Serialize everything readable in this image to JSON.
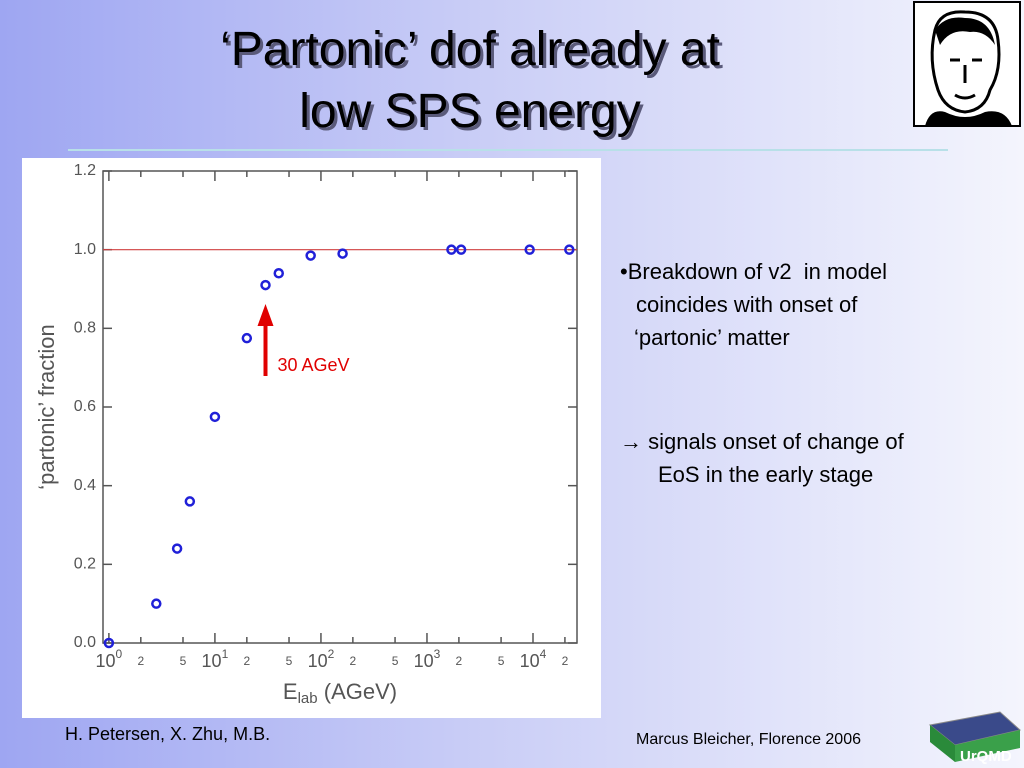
{
  "slide": {
    "title_lines": [
      "‘Partonic’ dof already at",
      "low SPS energy"
    ],
    "bullets": [
      "•Breakdown of v2  in model",
      "coincides with onset of",
      "‘partonic’ matter",
      "→ signals onset of change of",
      "EoS in the early stage"
    ],
    "footer_left": "H. Petersen, X. Zhu, M.B.",
    "footer_right": "Marcus Bleicher, Florence 2006",
    "logo_text": "UrQMD"
  },
  "chart_data": {
    "type": "scatter",
    "ylabel": "‘partonic’ fraction",
    "xlabel": {
      "main": "E",
      "sub": "lab",
      "rest": " (AGeV)"
    },
    "x": [
      1,
      2.8,
      4.4,
      5.8,
      10,
      20,
      30,
      40,
      80,
      160,
      1700,
      2100,
      9300,
      22000
    ],
    "series": [
      {
        "color": "#2020d8",
        "values": [
          0,
          0.1,
          0.24,
          0.36,
          0.575,
          0.775,
          0.91,
          0.94,
          0.985,
          0.99,
          1.0,
          1.0,
          1.0,
          1.0
        ]
      }
    ],
    "xscale": "log",
    "xlim": [
      0.88,
      26000
    ],
    "xticks": [
      {
        "value": 1,
        "label": "10",
        "sup": "0"
      },
      2,
      5,
      {
        "value": 10,
        "label": "10",
        "sup": "1"
      },
      {
        "value": 20,
        "label": "2"
      },
      {
        "value": 50,
        "label": "5"
      },
      {
        "value": 100,
        "label": "10",
        "sup": "2"
      },
      {
        "value": 200,
        "label": "2"
      },
      {
        "value": 500,
        "label": "5"
      },
      {
        "value": 1000,
        "label": "10",
        "sup": "3"
      },
      {
        "value": 2000,
        "label": "2"
      },
      {
        "value": 5000,
        "label": "5"
      },
      {
        "value": 10000,
        "label": "10",
        "sup": "4"
      },
      {
        "value": 20000,
        "label": "2"
      }
    ],
    "ylim": [
      0,
      1.2
    ],
    "yticks": [
      {
        "value": 0,
        "label": "0.0"
      },
      0.2,
      0.4,
      0.6,
      0.8,
      {
        "value": 1,
        "label": "1.0"
      },
      {
        "value": 1.2,
        "label": "1.2"
      }
    ],
    "reference_line": {
      "y": 1,
      "color": "#d04040"
    },
    "annotation": {
      "text": "30 AGeV",
      "x": 30,
      "color": "#e00000"
    }
  }
}
